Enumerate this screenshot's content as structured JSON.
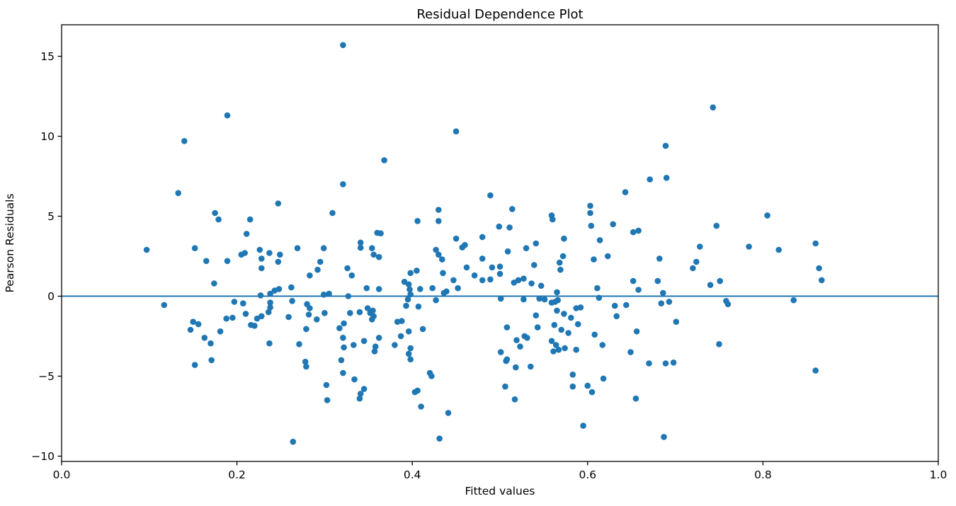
{
  "figure": {
    "background": "#ffffff",
    "spine_color": "#000000",
    "text_color": "#000000"
  },
  "chart_data": {
    "type": "scatter",
    "title": "Residual Dependence Plot",
    "xlabel": "Fitted values",
    "ylabel": "Pearson Residuals",
    "xlim": [
      0.0,
      1.0
    ],
    "ylim": [
      -10.33,
      16.97
    ],
    "grid": false,
    "legend": null,
    "marker_color": "#1f77b4",
    "marker_radius": 4.3,
    "zero_line": {
      "y": 0,
      "color": "#1f77b4",
      "width": 2
    },
    "x_ticks": [
      0.0,
      0.2,
      0.4,
      0.6,
      0.8,
      1.0
    ],
    "x_tick_labels": [
      "0.0",
      "0.2",
      "0.4",
      "0.6",
      "0.8",
      "1.0"
    ],
    "y_ticks": [
      15,
      10,
      5,
      0,
      -5,
      -10
    ],
    "y_tick_labels": [
      "15",
      "10",
      "5",
      "0",
      "−5",
      "−10"
    ],
    "points": [
      [
        0.097,
        2.9
      ],
      [
        0.117,
        -0.55
      ],
      [
        0.133,
        6.45
      ],
      [
        0.14,
        9.7
      ],
      [
        0.152,
        3.0
      ],
      [
        0.147,
        -2.1
      ],
      [
        0.15,
        -1.6
      ],
      [
        0.156,
        -1.75
      ],
      [
        0.152,
        -4.3
      ],
      [
        0.163,
        -2.6
      ],
      [
        0.165,
        2.2
      ],
      [
        0.17,
        -2.95
      ],
      [
        0.171,
        -4.0
      ],
      [
        0.174,
        0.8
      ],
      [
        0.175,
        5.2
      ],
      [
        0.179,
        4.8
      ],
      [
        0.181,
        -2.2
      ],
      [
        0.188,
        -1.4
      ],
      [
        0.189,
        11.3
      ],
      [
        0.189,
        2.2
      ],
      [
        0.195,
        -1.35
      ],
      [
        0.197,
        -0.35
      ],
      [
        0.205,
        2.6
      ],
      [
        0.209,
        2.7
      ],
      [
        0.207,
        -0.45
      ],
      [
        0.21,
        -1.1
      ],
      [
        0.211,
        3.9
      ],
      [
        0.215,
        4.8
      ],
      [
        0.216,
        -1.8
      ],
      [
        0.22,
        -1.85
      ],
      [
        0.223,
        -1.4
      ],
      [
        0.226,
        2.9
      ],
      [
        0.227,
        0.05
      ],
      [
        0.228,
        2.35
      ],
      [
        0.228,
        1.75
      ],
      [
        0.228,
        -1.25
      ],
      [
        0.236,
        -1.0
      ],
      [
        0.237,
        2.7
      ],
      [
        0.238,
        0.15
      ],
      [
        0.238,
        -0.4
      ],
      [
        0.238,
        -0.7
      ],
      [
        0.237,
        -2.95
      ],
      [
        0.243,
        0.35
      ],
      [
        0.247,
        5.8
      ],
      [
        0.247,
        2.15
      ],
      [
        0.248,
        0.45
      ],
      [
        0.249,
        2.6
      ],
      [
        0.259,
        -1.3
      ],
      [
        0.262,
        0.55
      ],
      [
        0.263,
        -0.3
      ],
      [
        0.264,
        -9.1
      ],
      [
        0.269,
        3.0
      ],
      [
        0.271,
        -3.0
      ],
      [
        0.278,
        -4.1
      ],
      [
        0.279,
        -4.4
      ],
      [
        0.279,
        -2.05
      ],
      [
        0.28,
        -0.5
      ],
      [
        0.283,
        -0.75
      ],
      [
        0.282,
        -1.15
      ],
      [
        0.283,
        1.3
      ],
      [
        0.291,
        -1.45
      ],
      [
        0.292,
        1.65
      ],
      [
        0.295,
        2.15
      ],
      [
        0.299,
        3.0
      ],
      [
        0.299,
        0.1
      ],
      [
        0.3,
        -1.05
      ],
      [
        0.302,
        -5.55
      ],
      [
        0.303,
        -6.5
      ],
      [
        0.305,
        0.15
      ],
      [
        0.309,
        5.2
      ],
      [
        0.317,
        -2.0
      ],
      [
        0.319,
        -4.0
      ],
      [
        0.321,
        15.7
      ],
      [
        0.321,
        7.0
      ],
      [
        0.321,
        -2.6
      ],
      [
        0.322,
        -1.7
      ],
      [
        0.322,
        -3.2
      ],
      [
        0.321,
        -4.8
      ],
      [
        0.326,
        1.75
      ],
      [
        0.327,
        0.0
      ],
      [
        0.329,
        -1.05
      ],
      [
        0.331,
        1.3
      ],
      [
        0.333,
        -3.05
      ],
      [
        0.334,
        -5.2
      ],
      [
        0.34,
        -1.0
      ],
      [
        0.34,
        -6.4
      ],
      [
        0.341,
        -6.1
      ],
      [
        0.341,
        3.35
      ],
      [
        0.341,
        3.03
      ],
      [
        0.345,
        -2.8
      ],
      [
        0.345,
        -5.8
      ],
      [
        0.348,
        0.5
      ],
      [
        0.349,
        -0.75
      ],
      [
        0.352,
        -1.05
      ],
      [
        0.354,
        3.0
      ],
      [
        0.354,
        -1.45
      ],
      [
        0.355,
        -0.9
      ],
      [
        0.356,
        2.6
      ],
      [
        0.356,
        -1.25
      ],
      [
        0.357,
        -3.45
      ],
      [
        0.358,
        -3.15
      ],
      [
        0.36,
        3.96
      ],
      [
        0.364,
        3.93
      ],
      [
        0.362,
        2.45
      ],
      [
        0.362,
        0.45
      ],
      [
        0.362,
        -2.6
      ],
      [
        0.368,
        8.5
      ],
      [
        0.38,
        -3.05
      ],
      [
        0.383,
        -1.6
      ],
      [
        0.388,
        -1.55
      ],
      [
        0.387,
        -2.5
      ],
      [
        0.391,
        0.9
      ],
      [
        0.393,
        -0.6
      ],
      [
        0.395,
        -0.2
      ],
      [
        0.396,
        0.74
      ],
      [
        0.396,
        -2.2
      ],
      [
        0.396,
        -3.6
      ],
      [
        0.397,
        0.42
      ],
      [
        0.398,
        1.45
      ],
      [
        0.398,
        0.11
      ],
      [
        0.398,
        -3.25
      ],
      [
        0.398,
        -3.95
      ],
      [
        0.403,
        -6.0
      ],
      [
        0.406,
        -5.9
      ],
      [
        0.405,
        1.6
      ],
      [
        0.406,
        4.7
      ],
      [
        0.407,
        -0.65
      ],
      [
        0.409,
        0.45
      ],
      [
        0.41,
        -6.9
      ],
      [
        0.412,
        -2.05
      ],
      [
        0.42,
        -4.8
      ],
      [
        0.422,
        -5.0
      ],
      [
        0.423,
        0.5
      ],
      [
        0.427,
        2.9
      ],
      [
        0.43,
        2.6
      ],
      [
        0.434,
        2.3
      ],
      [
        0.427,
        -0.25
      ],
      [
        0.43,
        5.4
      ],
      [
        0.43,
        4.7
      ],
      [
        0.431,
        -8.9
      ],
      [
        0.435,
        1.45
      ],
      [
        0.436,
        0.2
      ],
      [
        0.439,
        0.3
      ],
      [
        0.441,
        -7.3
      ],
      [
        0.447,
        1.0
      ],
      [
        0.45,
        10.3
      ],
      [
        0.45,
        3.6
      ],
      [
        0.452,
        0.5
      ],
      [
        0.457,
        3.05
      ],
      [
        0.46,
        3.2
      ],
      [
        0.462,
        1.8
      ],
      [
        0.471,
        1.3
      ],
      [
        0.48,
        3.7
      ],
      [
        0.48,
        2.35
      ],
      [
        0.48,
        1.0
      ],
      [
        0.489,
        6.3
      ],
      [
        0.489,
        1.05
      ],
      [
        0.491,
        1.8
      ],
      [
        0.499,
        4.35
      ],
      [
        0.5,
        1.85
      ],
      [
        0.5,
        1.4
      ],
      [
        0.501,
        -0.15
      ],
      [
        0.501,
        -3.5
      ],
      [
        0.506,
        -5.65
      ],
      [
        0.507,
        -4.05
      ],
      [
        0.508,
        -3.95
      ],
      [
        0.508,
        -1.95
      ],
      [
        0.509,
        2.8
      ],
      [
        0.511,
        4.3
      ],
      [
        0.514,
        5.45
      ],
      [
        0.516,
        0.85
      ],
      [
        0.517,
        -6.45
      ],
      [
        0.518,
        -4.45
      ],
      [
        0.519,
        -2.75
      ],
      [
        0.521,
        1.0
      ],
      [
        0.523,
        -3.15
      ],
      [
        0.527,
        1.1
      ],
      [
        0.527,
        -0.2
      ],
      [
        0.528,
        -2.5
      ],
      [
        0.53,
        3.0
      ],
      [
        0.531,
        -2.6
      ],
      [
        0.535,
        -4.4
      ],
      [
        0.536,
        0.8
      ],
      [
        0.539,
        1.95
      ],
      [
        0.541,
        3.3
      ],
      [
        0.541,
        -1.2
      ],
      [
        0.543,
        -1.95
      ],
      [
        0.545,
        -0.15
      ],
      [
        0.547,
        0.65
      ],
      [
        0.551,
        -0.2
      ],
      [
        0.559,
        5.05
      ],
      [
        0.56,
        4.8
      ],
      [
        0.559,
        -0.4
      ],
      [
        0.559,
        -2.8
      ],
      [
        0.561,
        -3.45
      ],
      [
        0.562,
        -1.8
      ],
      [
        0.563,
        -0.35
      ],
      [
        0.564,
        -3.05
      ],
      [
        0.565,
        0.25
      ],
      [
        0.565,
        -0.9
      ],
      [
        0.566,
        -0.25
      ],
      [
        0.567,
        -3.35
      ],
      [
        0.568,
        2.1
      ],
      [
        0.569,
        1.65
      ],
      [
        0.57,
        -2.1
      ],
      [
        0.572,
        2.5
      ],
      [
        0.573,
        3.6
      ],
      [
        0.573,
        -1.1
      ],
      [
        0.574,
        -3.25
      ],
      [
        0.578,
        -2.3
      ],
      [
        0.581,
        -1.35
      ],
      [
        0.583,
        -4.9
      ],
      [
        0.583,
        -5.65
      ],
      [
        0.587,
        -0.75
      ],
      [
        0.587,
        -3.35
      ],
      [
        0.589,
        -1.75
      ],
      [
        0.592,
        -0.7
      ],
      [
        0.595,
        -8.1
      ],
      [
        0.6,
        -5.6
      ],
      [
        0.603,
        5.65
      ],
      [
        0.603,
        5.2
      ],
      [
        0.604,
        4.4
      ],
      [
        0.605,
        -6.0
      ],
      [
        0.607,
        2.3
      ],
      [
        0.608,
        -2.4
      ],
      [
        0.611,
        0.5
      ],
      [
        0.613,
        -0.1
      ],
      [
        0.614,
        3.5
      ],
      [
        0.617,
        -3.05
      ],
      [
        0.618,
        -5.15
      ],
      [
        0.623,
        2.5
      ],
      [
        0.629,
        4.5
      ],
      [
        0.631,
        -0.6
      ],
      [
        0.633,
        -1.25
      ],
      [
        0.643,
        6.5
      ],
      [
        0.644,
        -0.55
      ],
      [
        0.649,
        -3.5
      ],
      [
        0.652,
        4.0
      ],
      [
        0.652,
        0.95
      ],
      [
        0.655,
        -6.4
      ],
      [
        0.656,
        -2.2
      ],
      [
        0.658,
        4.1
      ],
      [
        0.658,
        0.4
      ],
      [
        0.67,
        -4.2
      ],
      [
        0.671,
        7.3
      ],
      [
        0.68,
        0.95
      ],
      [
        0.682,
        2.35
      ],
      [
        0.684,
        -0.45
      ],
      [
        0.686,
        0.2
      ],
      [
        0.687,
        -8.8
      ],
      [
        0.689,
        9.4
      ],
      [
        0.689,
        -4.2
      ],
      [
        0.69,
        7.4
      ],
      [
        0.693,
        -0.35
      ],
      [
        0.698,
        -4.15
      ],
      [
        0.701,
        -1.6
      ],
      [
        0.72,
        1.75
      ],
      [
        0.724,
        2.15
      ],
      [
        0.728,
        3.1
      ],
      [
        0.74,
        0.7
      ],
      [
        0.743,
        11.8
      ],
      [
        0.747,
        4.4
      ],
      [
        0.75,
        -3.0
      ],
      [
        0.751,
        0.95
      ],
      [
        0.758,
        -0.3
      ],
      [
        0.76,
        -0.5
      ],
      [
        0.784,
        3.1
      ],
      [
        0.805,
        5.05
      ],
      [
        0.818,
        2.9
      ],
      [
        0.835,
        -0.25
      ],
      [
        0.86,
        3.3
      ],
      [
        0.86,
        -4.65
      ],
      [
        0.864,
        1.75
      ],
      [
        0.867,
        1.0
      ]
    ]
  }
}
